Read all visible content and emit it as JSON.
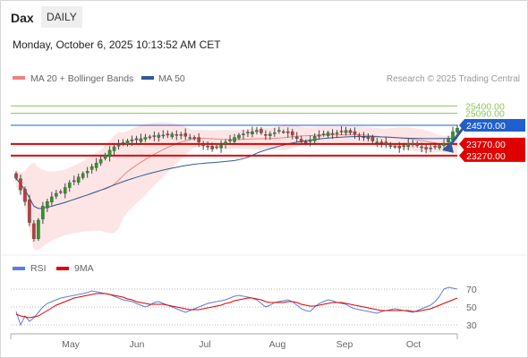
{
  "header": {
    "symbol": "Dax",
    "period": "DAILY",
    "datetime": "Monday, October 6, 2025 10:13:52 AM CET"
  },
  "colors": {
    "ma20": "#f08080",
    "ma50": "#2f5a9a",
    "bands_fill": "#fde0e0",
    "resistance": "#8fc460",
    "pivot": "#1f5fcf",
    "support": "#e00000",
    "rsi": "#5b7fd8",
    "rsi_ma": "#e00000",
    "arrow": "#2f5a9a"
  },
  "chart_data": [
    {
      "type": "candlestick",
      "legend": [
        {
          "name": "MA 20 + Bollinger Bands",
          "color": "#f08080"
        },
        {
          "name": "MA 50",
          "color": "#2f5a9a"
        }
      ],
      "source": "Research © 2025 Trading Central",
      "x_labels": [
        "May",
        "Jun",
        "Jul",
        "Aug",
        "Sep",
        "Oct"
      ],
      "levels": [
        {
          "label": "25400.00",
          "value": 25400,
          "kind": "resistance"
        },
        {
          "label": "25090.00",
          "value": 25090,
          "kind": "resistance"
        },
        {
          "label": "24570.00",
          "value": 24570,
          "kind": "pivot"
        },
        {
          "label": "23770.00",
          "value": 23770,
          "kind": "support"
        },
        {
          "label": "23270.00",
          "value": 23270,
          "kind": "support"
        }
      ],
      "ylim": [
        19000,
        26300
      ],
      "close": [
        22300,
        21800,
        21300,
        20400,
        19700,
        20500,
        21100,
        21300,
        21500,
        21650,
        21700,
        21900,
        22100,
        22200,
        22350,
        22500,
        22600,
        22800,
        22950,
        23100,
        23300,
        23500,
        23650,
        23750,
        23800,
        23900,
        23950,
        23950,
        24000,
        24050,
        24050,
        24100,
        24150,
        24150,
        24150,
        24200,
        24150,
        24150,
        24100,
        24050,
        24000,
        23850,
        23700,
        23650,
        23550,
        23650,
        23750,
        23850,
        23950,
        24050,
        24150,
        24200,
        24250,
        24300,
        24350,
        24250,
        24150,
        24200,
        24250,
        24350,
        24300,
        24250,
        24150,
        24000,
        23850,
        23800,
        23950,
        24100,
        24150,
        24200,
        24250,
        24200,
        24250,
        24300,
        24350,
        24250,
        24200,
        24100,
        24050,
        24000,
        23900,
        23850,
        23800,
        23750,
        23700,
        23650,
        23600,
        23700,
        23800,
        23750,
        23700,
        23650,
        23550,
        23600,
        23650,
        23700,
        23800,
        24000,
        24300,
        24450
      ]
    },
    {
      "type": "line",
      "title": "RSI",
      "series": [
        {
          "name": "RSI",
          "color": "#5b7fd8"
        },
        {
          "name": "9MA",
          "color": "#e00000"
        }
      ],
      "y_ticks": [
        70,
        50,
        30
      ],
      "ylim": [
        20,
        80
      ],
      "rsi": [
        45,
        30,
        40,
        34,
        38,
        44,
        50,
        54,
        56,
        58,
        60,
        61,
        62,
        63,
        64,
        65,
        66,
        68,
        67,
        66,
        65,
        64,
        62,
        60,
        58,
        57,
        56,
        54,
        52,
        50,
        52,
        55,
        56,
        54,
        52,
        50,
        48,
        46,
        44,
        46,
        48,
        50,
        52,
        54,
        55,
        56,
        57,
        58,
        60,
        62,
        63,
        62,
        61,
        60,
        58,
        54,
        50,
        52,
        55,
        56,
        57,
        58,
        56,
        52,
        48,
        46,
        45,
        50,
        54,
        56,
        58,
        57,
        55,
        54,
        53,
        50,
        48,
        47,
        46,
        45,
        44,
        43,
        45,
        46,
        47,
        48,
        47,
        46,
        45,
        44,
        46,
        48,
        50,
        52,
        56,
        62,
        70,
        72,
        71,
        70
      ],
      "ma9": [
        42,
        40,
        39,
        38,
        39,
        40,
        43,
        46,
        49,
        52,
        54,
        56,
        58,
        60,
        61,
        62,
        63,
        64,
        65,
        65,
        65,
        64,
        63,
        62,
        61,
        59,
        58,
        56,
        55,
        54,
        53,
        53,
        53,
        53,
        52,
        51,
        50,
        49,
        48,
        47,
        47,
        47,
        48,
        49,
        50,
        51,
        52,
        54,
        55,
        57,
        58,
        59,
        60,
        60,
        59,
        58,
        56,
        55,
        55,
        55,
        55,
        56,
        56,
        55,
        53,
        52,
        51,
        51,
        52,
        53,
        54,
        55,
        55,
        55,
        54,
        53,
        52,
        51,
        50,
        49,
        48,
        47,
        46,
        46,
        46,
        46,
        46,
        46,
        46,
        45,
        45,
        46,
        47,
        48,
        50,
        52,
        54,
        56,
        58,
        60
      ]
    }
  ]
}
